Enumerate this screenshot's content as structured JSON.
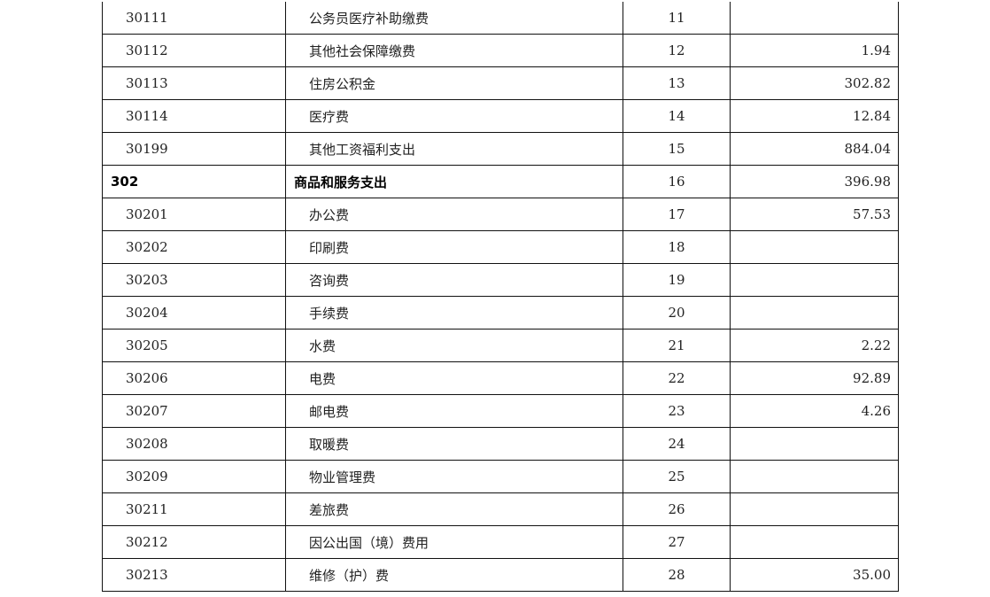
{
  "table": {
    "rows": [
      {
        "code": "30111",
        "name": "公务员医疗补助缴费",
        "no": "11",
        "amount": ""
      },
      {
        "code": "30112",
        "name": "其他社会保障缴费",
        "no": "12",
        "amount": "1.94"
      },
      {
        "code": "30113",
        "name": "住房公积金",
        "no": "13",
        "amount": "302.82"
      },
      {
        "code": "30114",
        "name": "医疗费",
        "no": "14",
        "amount": "12.84"
      },
      {
        "code": "30199",
        "name": "其他工资福利支出",
        "no": "15",
        "amount": "884.04"
      },
      {
        "code": "302",
        "name": "商品和服务支出",
        "no": "16",
        "amount": "396.98",
        "bold": true
      },
      {
        "code": "30201",
        "name": "办公费",
        "no": "17",
        "amount": "57.53"
      },
      {
        "code": "30202",
        "name": "印刷费",
        "no": "18",
        "amount": ""
      },
      {
        "code": "30203",
        "name": "咨询费",
        "no": "19",
        "amount": ""
      },
      {
        "code": "30204",
        "name": "手续费",
        "no": "20",
        "amount": ""
      },
      {
        "code": "30205",
        "name": "水费",
        "no": "21",
        "amount": "2.22"
      },
      {
        "code": "30206",
        "name": "电费",
        "no": "22",
        "amount": "92.89"
      },
      {
        "code": "30207",
        "name": "邮电费",
        "no": "23",
        "amount": "4.26"
      },
      {
        "code": "30208",
        "name": "取暖费",
        "no": "24",
        "amount": ""
      },
      {
        "code": "30209",
        "name": "物业管理费",
        "no": "25",
        "amount": ""
      },
      {
        "code": "30211",
        "name": "差旅费",
        "no": "26",
        "amount": ""
      },
      {
        "code": "30212",
        "name": "因公出国（境）费用",
        "no": "27",
        "amount": ""
      },
      {
        "code": "30213",
        "name": "维修（护）费",
        "no": "28",
        "amount": "35.00"
      }
    ]
  }
}
